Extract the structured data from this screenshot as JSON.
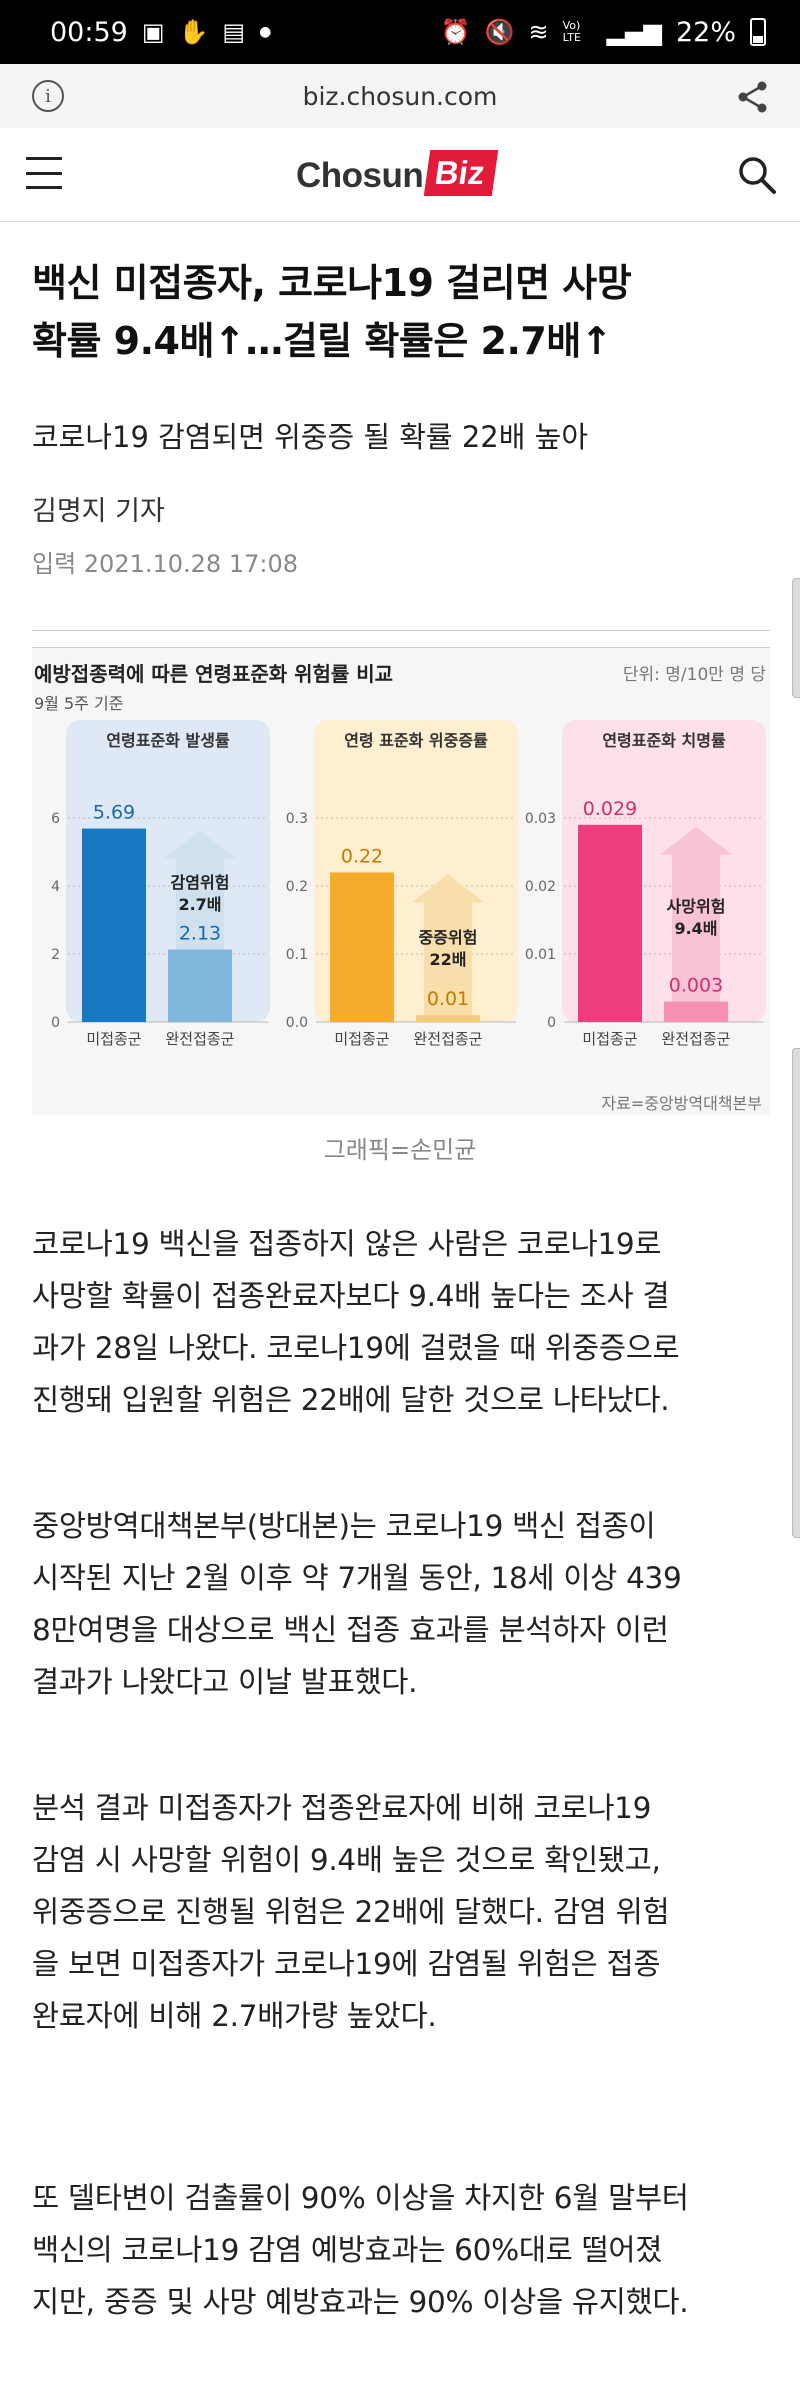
{
  "status_bar": {
    "time": "00:59",
    "battery": "22%",
    "icons_left": [
      "image-icon",
      "hand-icon",
      "news-icon",
      "dot-icon"
    ],
    "icons_right": [
      "alarm-icon",
      "mute-icon",
      "wifi-icon",
      "volte-icon",
      "signal-icon",
      "battery-icon"
    ],
    "volte_label": "Vo) LTE"
  },
  "browser": {
    "url": "biz.chosun.com"
  },
  "site": {
    "logo_word": "Chosun",
    "logo_badge": "Biz"
  },
  "article": {
    "headline_line1": "백신 미접종자, 코로나19 걸리면 사망",
    "headline_line2": "확률 9.4배↑…걸릴 확률은 2.7배↑",
    "subhead": "코로나19 감염되면 위중증 될 확률 22배 높아",
    "reporter": "김명지 기자",
    "date": "입력 2021.10.28 17:08",
    "caption": "그래픽=손민균",
    "paragraphs": [
      [
        "코로나19 백신을 접종하지 않은 사람은 코로나19로",
        "사망할 확률이 접종완료자보다 9.4배 높다는 조사 결",
        "과가 28일 나왔다. 코로나19에 걸렸을 때 위중증으로",
        "진행돼 입원할 위험은 22배에 달한 것으로 나타났다."
      ],
      [
        "중앙방역대책본부(방대본)는 코로나19 백신 접종이",
        "시작된 지난 2월 이후 약 7개월 동안, 18세 이상 439",
        "8만여명을 대상으로 백신 접종 효과를 분석하자 이런",
        "결과가 나왔다고 이날 발표했다."
      ],
      [
        "분석 결과 미접종자가 접종완료자에 비해 코로나19",
        "감염 시 사망할 위험이 9.4배 높은 것으로 확인됐고,",
        "위중증으로 진행될 위험은 22배에 달했다. 감염 위험",
        "을 보면 미접종자가 코로나19에 감염될 위험은 접종",
        "완료자에 비해 2.7배가량 높았다."
      ],
      [
        "또 델타변이 검출률이 90% 이상을 차지한 6월 말부터",
        "백신의 코로나19 감염 예방효과는 60%대로 떨어졌",
        "지만, 중증 및 사망 예방효과는 90% 이상을 유지했다."
      ]
    ]
  },
  "chart_data": {
    "title": "예방접종력에 따른 연령표준화 위험률 비교",
    "unit_label": "단위: 명/10만 명 당",
    "basis": "9월 5주 기준",
    "source": "자료=중앙방역대책본부",
    "type": "bar",
    "categories": [
      "미접종군",
      "완전접종군"
    ],
    "panels": [
      {
        "title": "연령표준화 발생률",
        "values": [
          5.69,
          2.13
        ],
        "value_labels": [
          "5.69",
          "2.13"
        ],
        "ylim": [
          0,
          6
        ],
        "yticks": [
          "0",
          "2",
          "4",
          "6"
        ],
        "tick_values": [
          0,
          2,
          4,
          6
        ],
        "ratio_label": [
          "감염위험",
          "2.7배"
        ],
        "colors": {
          "bg": "#dfe9f6",
          "bar1": "#1878c2",
          "bar2": "#7eb6dc",
          "arrow": "#cfe0ee",
          "text": "#1769ae"
        }
      },
      {
        "title": "연령 표준화 위중증률",
        "values": [
          0.22,
          0.01
        ],
        "value_labels": [
          "0.22",
          "0.01"
        ],
        "ylim": [
          0,
          0.3
        ],
        "yticks": [
          "0.0",
          "0.1",
          "0.2",
          "0.3"
        ],
        "tick_values": [
          0,
          0.1,
          0.2,
          0.3
        ],
        "ratio_label": [
          "중증위험",
          "22배"
        ],
        "colors": {
          "bg": "#fdefcf",
          "bar1": "#f6ab2a",
          "bar2": "#f7cc7a",
          "arrow": "#f8deaa",
          "text": "#c47a00"
        }
      },
      {
        "title": "연령표준화 치명률",
        "values": [
          0.029,
          0.003
        ],
        "value_labels": [
          "0.029",
          "0.003"
        ],
        "ylim": [
          0,
          0.03
        ],
        "yticks": [
          "0",
          "0.01",
          "0.02",
          "0.03"
        ],
        "tick_values": [
          0,
          0.01,
          0.02,
          0.03
        ],
        "ratio_label": [
          "사망위험",
          "9.4배"
        ],
        "colors": {
          "bg": "#fde0ea",
          "bar1": "#ef3e7d",
          "bar2": "#f58fb4",
          "arrow": "#f8c3d6",
          "text": "#d0306a"
        }
      }
    ]
  }
}
